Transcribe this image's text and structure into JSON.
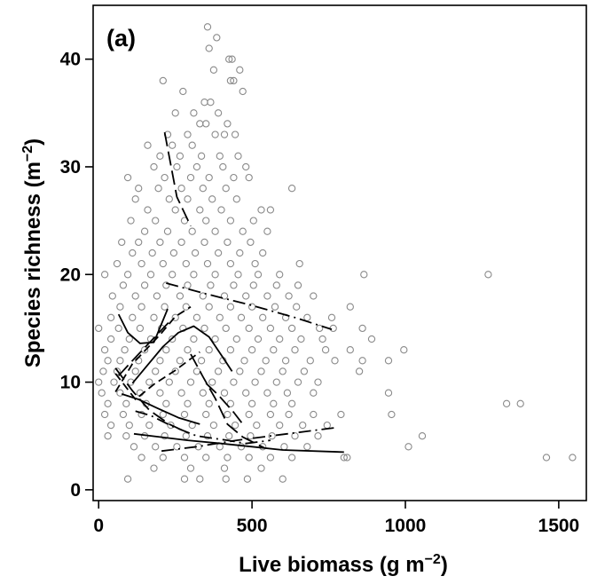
{
  "chart_data": {
    "type": "scatter",
    "panel_label": "(a)",
    "xlabel": "Live biomass (g m",
    "xlabel_sup": "−2",
    "xlabel_end": ")",
    "ylabel": "Species richness (m",
    "ylabel_sup": "−2",
    "ylabel_end": ")",
    "xlim": [
      -18,
      1590
    ],
    "ylim": [
      -1,
      45
    ],
    "x_ticks": [
      0,
      500,
      1000,
      1500
    ],
    "y_ticks": [
      0,
      10,
      20,
      30,
      40
    ],
    "x_tick_labels": [
      "0",
      "500",
      "1000",
      "1500"
    ],
    "y_tick_labels": [
      "0",
      "10",
      "20",
      "30",
      "40"
    ],
    "grid": false,
    "point_color": "#8a8a8a",
    "line_color": "#000000",
    "points": [
      [
        355,
        43
      ],
      [
        360,
        41
      ],
      [
        385,
        42
      ],
      [
        425,
        40
      ],
      [
        435,
        40
      ],
      [
        375,
        39
      ],
      [
        460,
        39
      ],
      [
        210,
        38
      ],
      [
        430,
        38
      ],
      [
        440,
        38
      ],
      [
        470,
        37
      ],
      [
        275,
        37
      ],
      [
        345,
        36
      ],
      [
        365,
        36
      ],
      [
        250,
        35
      ],
      [
        310,
        35
      ],
      [
        390,
        35
      ],
      [
        330,
        34
      ],
      [
        350,
        34
      ],
      [
        420,
        34
      ],
      [
        225,
        33
      ],
      [
        290,
        33
      ],
      [
        380,
        33
      ],
      [
        410,
        33
      ],
      [
        445,
        33
      ],
      [
        160,
        32
      ],
      [
        240,
        32
      ],
      [
        305,
        32
      ],
      [
        200,
        31
      ],
      [
        265,
        31
      ],
      [
        335,
        31
      ],
      [
        395,
        31
      ],
      [
        455,
        31
      ],
      [
        180,
        30
      ],
      [
        255,
        30
      ],
      [
        320,
        30
      ],
      [
        405,
        30
      ],
      [
        480,
        30
      ],
      [
        95,
        29
      ],
      [
        215,
        29
      ],
      [
        300,
        29
      ],
      [
        360,
        29
      ],
      [
        440,
        29
      ],
      [
        490,
        29
      ],
      [
        630,
        28
      ],
      [
        130,
        28
      ],
      [
        195,
        28
      ],
      [
        270,
        28
      ],
      [
        340,
        28
      ],
      [
        415,
        28
      ],
      [
        120,
        27
      ],
      [
        230,
        27
      ],
      [
        290,
        27
      ],
      [
        370,
        27
      ],
      [
        450,
        27
      ],
      [
        160,
        26
      ],
      [
        250,
        26
      ],
      [
        330,
        26
      ],
      [
        400,
        26
      ],
      [
        530,
        26
      ],
      [
        560,
        26
      ],
      [
        105,
        25
      ],
      [
        185,
        25
      ],
      [
        280,
        25
      ],
      [
        350,
        25
      ],
      [
        430,
        25
      ],
      [
        505,
        25
      ],
      [
        150,
        24
      ],
      [
        225,
        24
      ],
      [
        305,
        24
      ],
      [
        380,
        24
      ],
      [
        470,
        24
      ],
      [
        550,
        24
      ],
      [
        75,
        23
      ],
      [
        130,
        23
      ],
      [
        200,
        23
      ],
      [
        270,
        23
      ],
      [
        345,
        23
      ],
      [
        420,
        23
      ],
      [
        495,
        23
      ],
      [
        110,
        22
      ],
      [
        175,
        22
      ],
      [
        245,
        22
      ],
      [
        315,
        22
      ],
      [
        390,
        22
      ],
      [
        460,
        22
      ],
      [
        535,
        22
      ],
      [
        60,
        21
      ],
      [
        140,
        21
      ],
      [
        210,
        21
      ],
      [
        285,
        21
      ],
      [
        355,
        21
      ],
      [
        430,
        21
      ],
      [
        510,
        21
      ],
      [
        655,
        21
      ],
      [
        20,
        20
      ],
      [
        95,
        20
      ],
      [
        170,
        20
      ],
      [
        240,
        20
      ],
      [
        310,
        20
      ],
      [
        380,
        20
      ],
      [
        455,
        20
      ],
      [
        520,
        20
      ],
      [
        590,
        20
      ],
      [
        865,
        20
      ],
      [
        1270,
        20
      ],
      [
        80,
        19
      ],
      [
        150,
        19
      ],
      [
        220,
        19
      ],
      [
        290,
        19
      ],
      [
        365,
        19
      ],
      [
        440,
        19
      ],
      [
        505,
        19
      ],
      [
        580,
        19
      ],
      [
        650,
        19
      ],
      [
        45,
        18
      ],
      [
        120,
        18
      ],
      [
        190,
        18
      ],
      [
        265,
        18
      ],
      [
        340,
        18
      ],
      [
        410,
        18
      ],
      [
        480,
        18
      ],
      [
        550,
        18
      ],
      [
        620,
        18
      ],
      [
        700,
        18
      ],
      [
        70,
        17
      ],
      [
        140,
        17
      ],
      [
        215,
        17
      ],
      [
        285,
        17
      ],
      [
        360,
        17
      ],
      [
        430,
        17
      ],
      [
        500,
        17
      ],
      [
        575,
        17
      ],
      [
        645,
        17
      ],
      [
        820,
        17
      ],
      [
        40,
        16
      ],
      [
        110,
        16
      ],
      [
        180,
        16
      ],
      [
        250,
        16
      ],
      [
        320,
        16
      ],
      [
        395,
        16
      ],
      [
        465,
        16
      ],
      [
        535,
        16
      ],
      [
        610,
        16
      ],
      [
        680,
        16
      ],
      [
        760,
        16
      ],
      [
        0,
        15
      ],
      [
        65,
        15
      ],
      [
        135,
        15
      ],
      [
        205,
        15
      ],
      [
        275,
        15
      ],
      [
        345,
        15
      ],
      [
        415,
        15
      ],
      [
        490,
        15
      ],
      [
        560,
        15
      ],
      [
        630,
        15
      ],
      [
        720,
        15
      ],
      [
        765,
        15
      ],
      [
        860,
        15
      ],
      [
        40,
        14
      ],
      [
        100,
        14
      ],
      [
        170,
        14
      ],
      [
        240,
        14
      ],
      [
        310,
        14
      ],
      [
        380,
        14
      ],
      [
        450,
        14
      ],
      [
        520,
        14
      ],
      [
        590,
        14
      ],
      [
        660,
        14
      ],
      [
        730,
        14
      ],
      [
        890,
        14
      ],
      [
        20,
        13
      ],
      [
        85,
        13
      ],
      [
        150,
        13
      ],
      [
        220,
        13
      ],
      [
        290,
        13
      ],
      [
        360,
        13
      ],
      [
        430,
        13
      ],
      [
        500,
        13
      ],
      [
        570,
        13
      ],
      [
        640,
        13
      ],
      [
        740,
        13
      ],
      [
        820,
        13
      ],
      [
        995,
        13
      ],
      [
        30,
        12
      ],
      [
        70,
        12
      ],
      [
        130,
        12
      ],
      [
        200,
        12
      ],
      [
        265,
        12
      ],
      [
        335,
        12
      ],
      [
        405,
        12
      ],
      [
        475,
        12
      ],
      [
        545,
        12
      ],
      [
        610,
        12
      ],
      [
        690,
        12
      ],
      [
        770,
        12
      ],
      [
        860,
        12
      ],
      [
        945,
        12
      ],
      [
        15,
        11
      ],
      [
        60,
        11
      ],
      [
        120,
        11
      ],
      [
        185,
        11
      ],
      [
        250,
        11
      ],
      [
        320,
        11
      ],
      [
        390,
        11
      ],
      [
        460,
        11
      ],
      [
        530,
        11
      ],
      [
        600,
        11
      ],
      [
        670,
        11
      ],
      [
        850,
        11
      ],
      [
        0,
        10
      ],
      [
        50,
        10
      ],
      [
        105,
        10
      ],
      [
        165,
        10
      ],
      [
        230,
        10
      ],
      [
        300,
        10
      ],
      [
        370,
        10
      ],
      [
        440,
        10
      ],
      [
        510,
        10
      ],
      [
        580,
        10
      ],
      [
        650,
        10
      ],
      [
        715,
        10
      ],
      [
        10,
        9
      ],
      [
        70,
        9
      ],
      [
        135,
        9
      ],
      [
        200,
        9
      ],
      [
        270,
        9
      ],
      [
        340,
        9
      ],
      [
        410,
        9
      ],
      [
        480,
        9
      ],
      [
        550,
        9
      ],
      [
        615,
        9
      ],
      [
        700,
        9
      ],
      [
        945,
        9
      ],
      [
        30,
        8
      ],
      [
        90,
        8
      ],
      [
        155,
        8
      ],
      [
        220,
        8
      ],
      [
        290,
        8
      ],
      [
        360,
        8
      ],
      [
        430,
        8
      ],
      [
        500,
        8
      ],
      [
        570,
        8
      ],
      [
        630,
        8
      ],
      [
        1330,
        8
      ],
      [
        1375,
        8
      ],
      [
        20,
        7
      ],
      [
        80,
        7
      ],
      [
        140,
        7
      ],
      [
        210,
        7
      ],
      [
        280,
        7
      ],
      [
        350,
        7
      ],
      [
        420,
        7
      ],
      [
        490,
        7
      ],
      [
        560,
        7
      ],
      [
        620,
        7
      ],
      [
        700,
        7
      ],
      [
        790,
        7
      ],
      [
        955,
        7
      ],
      [
        40,
        6
      ],
      [
        100,
        6
      ],
      [
        165,
        6
      ],
      [
        235,
        6
      ],
      [
        305,
        6
      ],
      [
        375,
        6
      ],
      [
        445,
        6
      ],
      [
        515,
        6
      ],
      [
        590,
        6
      ],
      [
        665,
        6
      ],
      [
        745,
        6
      ],
      [
        30,
        5
      ],
      [
        90,
        5
      ],
      [
        150,
        5
      ],
      [
        215,
        5
      ],
      [
        285,
        5
      ],
      [
        355,
        5
      ],
      [
        425,
        5
      ],
      [
        495,
        5
      ],
      [
        565,
        5
      ],
      [
        640,
        5
      ],
      [
        715,
        5
      ],
      [
        1055,
        5
      ],
      [
        115,
        4
      ],
      [
        185,
        4
      ],
      [
        255,
        4
      ],
      [
        325,
        4
      ],
      [
        395,
        4
      ],
      [
        465,
        4
      ],
      [
        535,
        4
      ],
      [
        605,
        4
      ],
      [
        680,
        4
      ],
      [
        1010,
        4
      ],
      [
        140,
        3
      ],
      [
        210,
        3
      ],
      [
        280,
        3
      ],
      [
        350,
        3
      ],
      [
        420,
        3
      ],
      [
        490,
        3
      ],
      [
        560,
        3
      ],
      [
        630,
        3
      ],
      [
        800,
        3
      ],
      [
        810,
        3
      ],
      [
        1460,
        3
      ],
      [
        1545,
        3
      ],
      [
        180,
        2
      ],
      [
        300,
        2
      ],
      [
        410,
        2
      ],
      [
        530,
        2
      ],
      [
        95,
        1
      ],
      [
        280,
        1
      ],
      [
        330,
        1
      ],
      [
        415,
        1
      ],
      [
        485,
        1
      ],
      [
        600,
        1
      ]
    ],
    "fit_lines": [
      {
        "style": "long-dash",
        "points": [
          [
            215,
            33.2
          ],
          [
            255,
            27.2
          ],
          [
            300,
            24.5
          ]
        ]
      },
      {
        "style": "dash-dot",
        "points": [
          [
            220,
            19.2
          ],
          [
            350,
            18.2
          ],
          [
            490,
            17.2
          ],
          [
            640,
            16.0
          ],
          [
            760,
            14.9
          ]
        ]
      },
      {
        "style": "solid",
        "points": [
          [
            65,
            16.3
          ],
          [
            95,
            14.6
          ],
          [
            135,
            13.6
          ],
          [
            180,
            13.7
          ],
          [
            225,
            16.8
          ]
        ]
      },
      {
        "style": "long-dash",
        "points": [
          [
            65,
            10.6
          ],
          [
            120,
            12.3
          ],
          [
            180,
            14.1
          ],
          [
            230,
            15.6
          ]
        ]
      },
      {
        "style": "solid",
        "points": [
          [
            110,
            9.9
          ],
          [
            160,
            11.6
          ],
          [
            210,
            13.3
          ],
          [
            260,
            14.6
          ],
          [
            310,
            15.2
          ],
          [
            360,
            14.2
          ],
          [
            405,
            12.3
          ],
          [
            435,
            11.0
          ]
        ]
      },
      {
        "style": "dash",
        "points": [
          [
            55,
            9.1
          ],
          [
            110,
            11.7
          ],
          [
            150,
            12.9
          ],
          [
            200,
            14.4
          ],
          [
            250,
            16.1
          ],
          [
            300,
            17.0
          ]
        ]
      },
      {
        "style": "dash",
        "points": [
          [
            55,
            10.8
          ],
          [
            120,
            8.4
          ],
          [
            180,
            9.8
          ],
          [
            250,
            11.1
          ],
          [
            330,
            12.8
          ]
        ]
      },
      {
        "style": "long-dash",
        "points": [
          [
            55,
            11.3
          ],
          [
            110,
            9.2
          ],
          [
            165,
            7.4
          ],
          [
            230,
            6.1
          ],
          [
            290,
            5.3
          ]
        ]
      },
      {
        "style": "solid",
        "points": [
          [
            75,
            8.9
          ],
          [
            130,
            8.4
          ],
          [
            190,
            7.6
          ],
          [
            260,
            6.7
          ],
          [
            330,
            6.1
          ]
        ]
      },
      {
        "style": "long-dash",
        "points": [
          [
            300,
            12.6
          ],
          [
            340,
            10.5
          ],
          [
            380,
            8.5
          ],
          [
            420,
            6.1
          ],
          [
            470,
            4.9
          ],
          [
            540,
            3.9
          ]
        ]
      },
      {
        "style": "solid",
        "points": [
          [
            115,
            5.2
          ],
          [
            200,
            4.9
          ],
          [
            290,
            4.6
          ],
          [
            400,
            4.3
          ],
          [
            500,
            4.0
          ],
          [
            600,
            3.7
          ],
          [
            800,
            3.5
          ]
        ]
      },
      {
        "style": "dash-dot",
        "points": [
          [
            205,
            3.6
          ],
          [
            320,
            4.0
          ],
          [
            450,
            4.6
          ],
          [
            560,
            5.0
          ],
          [
            670,
            5.4
          ],
          [
            780,
            5.8
          ]
        ]
      },
      {
        "style": "dash-dot",
        "points": [
          [
            120,
            7.3
          ],
          [
            170,
            6.9
          ],
          [
            240,
            5.9
          ],
          [
            320,
            5.0
          ],
          [
            420,
            4.6
          ],
          [
            480,
            4.3
          ],
          [
            560,
            4.6
          ]
        ]
      },
      {
        "style": "long-dash",
        "points": [
          [
            350,
            9.9
          ],
          [
            390,
            8.8
          ],
          [
            440,
            7.2
          ],
          [
            470,
            6.1
          ]
        ]
      }
    ]
  }
}
